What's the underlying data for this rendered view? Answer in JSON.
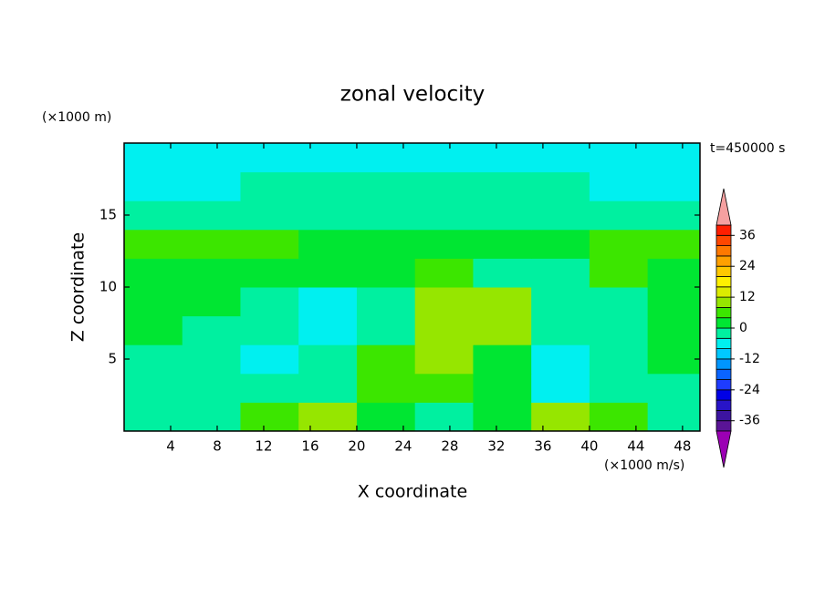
{
  "chart_data": {
    "type": "contour",
    "title": "zonal velocity",
    "x_label": "X coordinate",
    "y_label": "Z coordinate",
    "x_unit": "(×1000 m/s)",
    "y_unit": "(×1000 m)",
    "time_label": "t=450000 s",
    "x": [
      2.5,
      7.5,
      12.5,
      17.5,
      22.5,
      27.5,
      32.5,
      37.5,
      42.5,
      47.5
    ],
    "y": [
      1,
      3,
      5,
      7,
      9,
      11,
      13,
      15,
      17,
      19
    ],
    "z": [
      [
        -3,
        -2,
        6,
        9,
        3,
        -4,
        2,
        10,
        4,
        -2
      ],
      [
        -4,
        -2,
        -2,
        -1,
        6,
        6,
        2,
        -5,
        -2,
        -1
      ],
      [
        -2,
        -3,
        -5,
        -3,
        7,
        8,
        3,
        -8,
        -4,
        0
      ],
      [
        1,
        -1,
        -3,
        -6,
        -2,
        9,
        10,
        -2,
        -3,
        1
      ],
      [
        2,
        1,
        -2,
        -6,
        -2,
        8,
        8,
        -1,
        -2,
        1
      ],
      [
        2,
        3,
        2,
        1,
        3,
        6,
        -1,
        -2,
        5,
        3
      ],
      [
        5,
        6,
        4,
        3,
        2,
        2,
        1,
        3,
        6,
        6
      ],
      [
        -2,
        -2,
        -2,
        -1,
        -1,
        -2,
        -2,
        -2,
        -2,
        -2
      ],
      [
        -5,
        -5,
        -4,
        -3,
        -3,
        -3,
        -3,
        -4,
        -5,
        -5
      ],
      [
        -6,
        -6,
        -6,
        -6,
        -6,
        -6,
        -6,
        -6,
        -6,
        -6
      ]
    ],
    "xlim": [
      0,
      49.5
    ],
    "ylim": [
      0,
      20
    ],
    "xticks": [
      4,
      8,
      12,
      16,
      20,
      24,
      28,
      32,
      36,
      40,
      44,
      48
    ],
    "yticks": [
      5,
      10,
      15
    ],
    "colorbar": {
      "levels": [
        -40,
        -36,
        -32,
        -28,
        -24,
        -20,
        -16,
        -12,
        -8,
        -4,
        0,
        4,
        8,
        12,
        16,
        20,
        24,
        28,
        32,
        36,
        40
      ],
      "ticks": [
        -36,
        -24,
        -12,
        0,
        12,
        24,
        36
      ],
      "colors": [
        "#9b00b4",
        "#5a1496",
        "#3c14a0",
        "#2814c8",
        "#0000e6",
        "#1e3cff",
        "#0a64ff",
        "#0096ff",
        "#00c8ff",
        "#00f0f0",
        "#00f0a0",
        "#00e632",
        "#3ce600",
        "#96e600",
        "#dcec00",
        "#fff000",
        "#ffc800",
        "#ffa000",
        "#ff7800",
        "#ff4600",
        "#ff1e00",
        "#f5a0a0"
      ]
    }
  }
}
